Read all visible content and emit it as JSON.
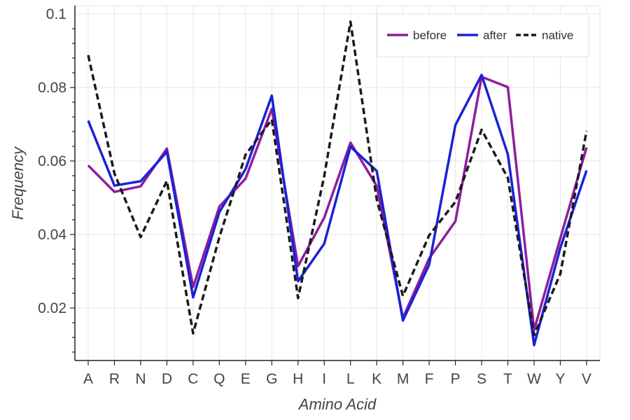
{
  "chart_data": {
    "type": "line",
    "xlabel": "Amino Acid",
    "ylabel": "Frequency",
    "ylim": [
      0.0,
      0.1
    ],
    "yticks": [
      0.02,
      0.04,
      0.06,
      0.08,
      0.1
    ],
    "ytick_labels": [
      "0.02",
      "0.04",
      "0.06",
      "0.08",
      "0.1"
    ],
    "grid": true,
    "legend_position": "top-right",
    "categories": [
      "A",
      "R",
      "N",
      "D",
      "C",
      "Q",
      "E",
      "G",
      "H",
      "I",
      "L",
      "K",
      "M",
      "F",
      "P",
      "S",
      "T",
      "W",
      "Y",
      "V"
    ],
    "series": [
      {
        "name": "before",
        "color": "#8e1e9c",
        "dash": "solid",
        "values": [
          0.0588,
          0.0516,
          0.0531,
          0.0634,
          0.0257,
          0.0476,
          0.0552,
          0.0742,
          0.0314,
          0.0446,
          0.065,
          0.0532,
          0.0173,
          0.0335,
          0.0436,
          0.0829,
          0.0801,
          0.014,
          0.039,
          0.0637
        ]
      },
      {
        "name": "after",
        "color": "#1a22d6",
        "dash": "solid",
        "values": [
          0.071,
          0.0533,
          0.0545,
          0.0625,
          0.0229,
          0.0461,
          0.0578,
          0.0778,
          0.0273,
          0.0375,
          0.0639,
          0.0573,
          0.0166,
          0.0318,
          0.0698,
          0.0834,
          0.0618,
          0.0099,
          0.0364,
          0.0574
        ]
      },
      {
        "name": "native",
        "color": "#1a1a1a",
        "dash": "dashed",
        "values": [
          0.0888,
          0.0566,
          0.0393,
          0.0546,
          0.0131,
          0.0393,
          0.0617,
          0.0713,
          0.0227,
          0.0559,
          0.0979,
          0.0495,
          0.0233,
          0.0398,
          0.0489,
          0.0685,
          0.0554,
          0.0126,
          0.0293,
          0.0682
        ]
      }
    ]
  }
}
